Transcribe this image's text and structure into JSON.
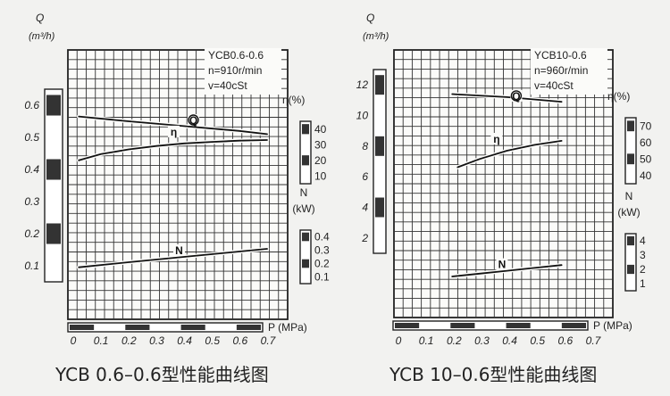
{
  "chart_data": [
    {
      "type": "line",
      "caption": "YCB 0.6–0.6型性能曲线图",
      "info": [
        "YCB0.6-0.6",
        "n=910r/min",
        "v=40cSt"
      ],
      "xlabel": "P (MPa)",
      "x_ticks": [
        "0",
        "0.1",
        "0.2",
        "0.3",
        "0.4",
        "0.5",
        "0.6",
        "0.7"
      ],
      "xlim": [
        0,
        0.75
      ],
      "q_axis": {
        "label_main": "Q",
        "label_unit": "(m³/h)",
        "ticks": [
          "0.6",
          "0.5",
          "0.4",
          "0.3",
          "0.2",
          "0.1"
        ],
        "range": [
          0,
          0.7
        ]
      },
      "eta_axis": {
        "label": "η(%)",
        "ticks": [
          "40",
          "30",
          "20",
          "10"
        ],
        "range": [
          10,
          40
        ]
      },
      "n_axis": {
        "label_main": "N",
        "label_unit": "(kW)",
        "ticks": [
          "0.4",
          "0.3",
          "0.2",
          "0.1"
        ],
        "range": [
          0.1,
          0.4
        ]
      },
      "series": [
        {
          "name": "Q",
          "axis": "q",
          "x": [
            0.02,
            0.2,
            0.4,
            0.6,
            0.7
          ],
          "y": [
            0.565,
            0.55,
            0.535,
            0.52,
            0.51
          ]
        },
        {
          "name": "η",
          "axis": "eta",
          "x": [
            0.02,
            0.1,
            0.2,
            0.3,
            0.4,
            0.5,
            0.6,
            0.7
          ],
          "y": [
            20,
            24,
            27,
            29.2,
            30.8,
            31.8,
            32.6,
            33
          ]
        },
        {
          "name": "N",
          "axis": "n",
          "x": [
            0.02,
            0.2,
            0.4,
            0.6,
            0.7
          ],
          "y": [
            0.172,
            0.21,
            0.25,
            0.29,
            0.31
          ]
        }
      ]
    },
    {
      "type": "line",
      "caption": "YCB 10–0.6型性能曲线图",
      "info": [
        "YCB10-0.6",
        "n=960r/min",
        "v=40cSt"
      ],
      "xlabel": "P (MPa)",
      "x_ticks": [
        "0",
        "0.1",
        "0.2",
        "0.3",
        "0.4",
        "0.5",
        "0.6",
        "0.7"
      ],
      "xlim": [
        0,
        0.75
      ],
      "q_axis": {
        "label_main": "Q",
        "label_unit": "(m³/h)",
        "ticks": [
          "12",
          "10",
          "8",
          "6",
          "4",
          "2"
        ],
        "range": [
          0,
          14
        ]
      },
      "eta_axis": {
        "label": "η(%)",
        "ticks": [
          "70",
          "60",
          "50",
          "40"
        ],
        "range": [
          40,
          70
        ]
      },
      "n_axis": {
        "label_main": "N",
        "label_unit": "(kW)",
        "ticks": [
          "4",
          "3",
          "2",
          "1"
        ],
        "range": [
          1,
          4
        ]
      },
      "series": [
        {
          "name": "Q",
          "axis": "q",
          "x": [
            0.2,
            0.4,
            0.6
          ],
          "y": [
            11.4,
            11.2,
            10.9
          ]
        },
        {
          "name": "η",
          "axis": "eta",
          "x": [
            0.22,
            0.3,
            0.4,
            0.5,
            0.6
          ],
          "y": [
            45,
            50,
            55,
            58.5,
            61
          ]
        },
        {
          "name": "N",
          "axis": "n",
          "x": [
            0.2,
            0.3,
            0.4,
            0.5,
            0.6
          ],
          "y": [
            1.5,
            1.7,
            1.9,
            2.1,
            2.3
          ]
        }
      ]
    }
  ]
}
